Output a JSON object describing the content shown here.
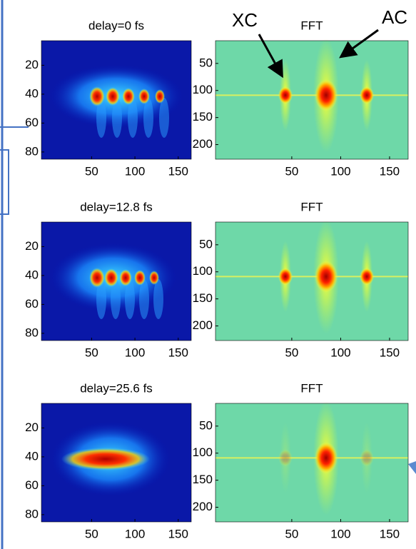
{
  "annotations": [
    "XC",
    "AC"
  ],
  "rows": [
    {
      "image": {
        "title": "delay=0 fs",
        "xlim": [
          -8,
          165
        ],
        "ylim": [
          3,
          85
        ],
        "xticks": [
          50,
          100,
          150
        ],
        "yticks": [
          20,
          40,
          60,
          80
        ]
      },
      "fft": {
        "title": "FFT",
        "xlim": [
          -28,
          169
        ],
        "ylim": [
          8,
          227
        ],
        "xticks": [
          50,
          100,
          150
        ],
        "yticks": [
          50,
          100,
          150,
          200
        ]
      }
    },
    {
      "image": {
        "title": "delay=12.8 fs",
        "xlim": [
          -8,
          165
        ],
        "ylim": [
          3,
          85
        ],
        "xticks": [
          50,
          100,
          150
        ],
        "yticks": [
          20,
          40,
          60,
          80
        ]
      },
      "fft": {
        "title": "FFT",
        "xlim": [
          -28,
          169
        ],
        "ylim": [
          8,
          227
        ],
        "xticks": [
          50,
          100,
          150
        ],
        "yticks": [
          50,
          100,
          150,
          200
        ]
      }
    },
    {
      "image": {
        "title": "delay=25.6 fs",
        "xlim": [
          -8,
          165
        ],
        "ylim": [
          3,
          85
        ],
        "xticks": [
          50,
          100,
          150
        ],
        "yticks": [
          20,
          40,
          60,
          80
        ]
      },
      "fft": {
        "title": "FFT",
        "xlim": [
          -28,
          169
        ],
        "ylim": [
          8,
          227
        ],
        "xticks": [
          50,
          100,
          150
        ],
        "yticks": [
          50,
          100,
          150,
          200
        ]
      }
    }
  ]
}
